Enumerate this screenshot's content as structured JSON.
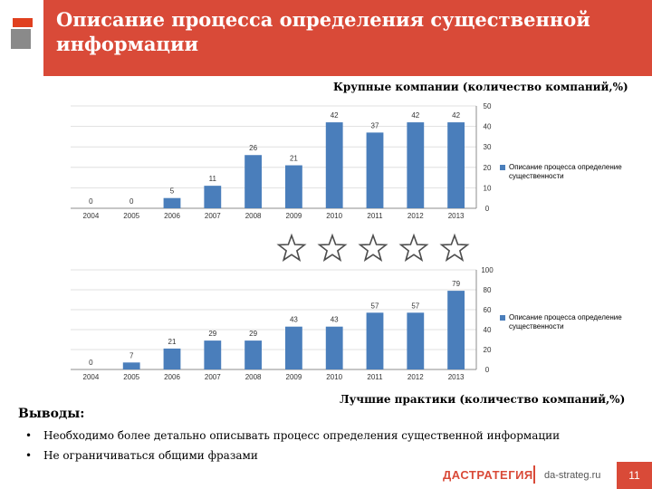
{
  "header": {
    "title": "Описание процесса определения существенной информации"
  },
  "chart_data": [
    {
      "type": "bar",
      "title": "Крупные компании (количество компаний,%)",
      "categories": [
        "2004",
        "2005",
        "2006",
        "2007",
        "2008",
        "2009",
        "2010",
        "2011",
        "2012",
        "2013"
      ],
      "series": [
        {
          "name": "Описание процесса определение существенности",
          "values": [
            0,
            0,
            5,
            11,
            26,
            21,
            42,
            37,
            42,
            42
          ]
        }
      ],
      "ylim": [
        0,
        50
      ],
      "yticks": [
        "0",
        "10",
        "20",
        "30",
        "40",
        "50"
      ],
      "bar_color": "#4a7ebb",
      "gridlines": true,
      "legend_position": "right"
    },
    {
      "type": "bar",
      "title": "Лучшие практики (количество компаний,%)",
      "categories": [
        "2004",
        "2005",
        "2006",
        "2007",
        "2008",
        "2009",
        "2010",
        "2011",
        "2012",
        "2013"
      ],
      "series": [
        {
          "name": "Описание процесса определение существенности",
          "values": [
            0,
            7,
            21,
            29,
            29,
            43,
            43,
            57,
            57,
            79
          ]
        }
      ],
      "ylim": [
        0,
        100
      ],
      "yticks": [
        "0",
        "20",
        "40",
        "60",
        "80",
        "100"
      ],
      "bar_color": "#4a7ebb",
      "gridlines": true,
      "legend_position": "right"
    }
  ],
  "stars_count": 5,
  "conclusions": {
    "title": "Выводы:",
    "bullet_symbol": "•",
    "items": [
      "Необходимо более детально описывать процесс определения существенной информации",
      "Не ограничиваться общими фразами"
    ]
  },
  "footer": {
    "logo": "ДАСТРАТЕГИЯ",
    "url": "da-strateg.ru",
    "page_number": "11"
  },
  "colors": {
    "accent": "#d94a38",
    "bar": "#4a7ebb"
  }
}
